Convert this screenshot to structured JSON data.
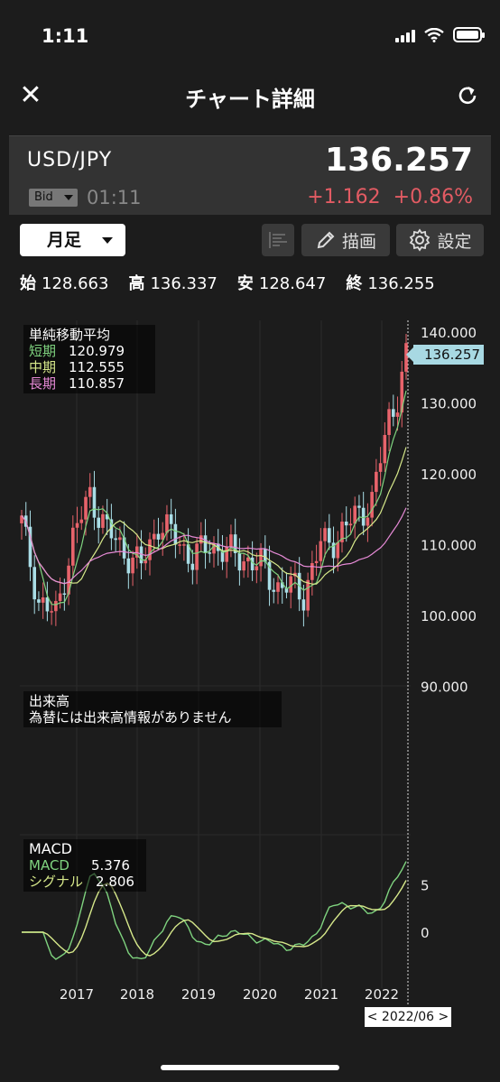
{
  "status": {
    "time": "1:11"
  },
  "header": {
    "title": "チャート詳細"
  },
  "quote": {
    "pair": "USD/JPY",
    "price": "136.257",
    "bid_label": "Bid",
    "time": "01:11",
    "change": "+1.162",
    "change_pct": "+0.86%"
  },
  "toolbar": {
    "period": "月足",
    "draw_label": "描画",
    "settings_label": "設定"
  },
  "ohlc": {
    "open_label": "始",
    "open": "128.663",
    "high_label": "高",
    "high": "136.337",
    "low_label": "安",
    "low": "128.647",
    "close_label": "終",
    "close": "136.255"
  },
  "sma_legend": {
    "title": "単純移動平均",
    "short_label": "短期",
    "short": "120.979",
    "mid_label": "中期",
    "mid": "112.555",
    "long_label": "長期",
    "long": "110.857"
  },
  "volume_legend": {
    "title": "出来高",
    "note": "為替には出来高情報がありません"
  },
  "macd_legend": {
    "title": "MACD",
    "macd_label": "MACD",
    "macd": "5.376",
    "signal_label": "シグナル",
    "signal": "2.806"
  },
  "price_axis": [
    "140.000",
    "130.000",
    "120.000",
    "110.000",
    "100.000",
    "90.000"
  ],
  "macd_axis": [
    "5",
    "0"
  ],
  "x_axis": [
    "2017",
    "2018",
    "2019",
    "2020",
    "2021",
    "2022"
  ],
  "current_price_tag": "136.257",
  "current_date_tag": "< 2022/06 >",
  "colors": {
    "up": "#e8636b",
    "down": "#a9dde6",
    "short": "#7fd37f",
    "mid": "#d6e88a",
    "long": "#e68ad6"
  }
}
